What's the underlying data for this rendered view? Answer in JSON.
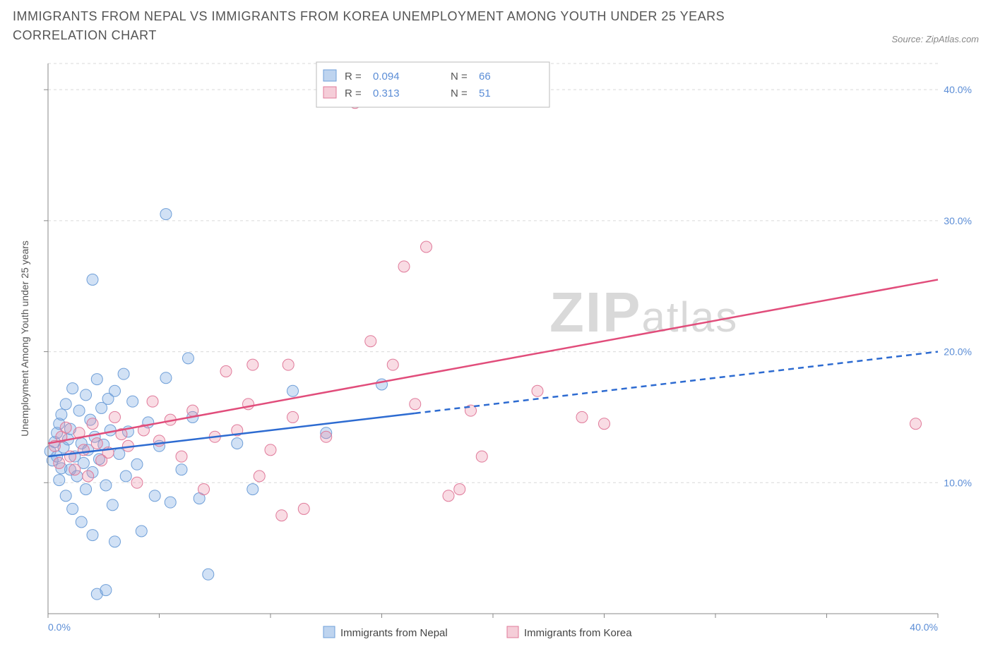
{
  "title": "IMMIGRANTS FROM NEPAL VS IMMIGRANTS FROM KOREA UNEMPLOYMENT AMONG YOUTH UNDER 25 YEARS CORRELATION CHART",
  "source_label": "Source: ZipAtlas.com",
  "watermark": {
    "zip": "ZIP",
    "atlas": "atlas"
  },
  "y_axis_label": "Unemployment Among Youth under 25 years",
  "chart": {
    "type": "scatter",
    "background_color": "#ffffff",
    "grid_color": "#d9d9d9",
    "axis_line_color": "#888888",
    "tick_label_color": "#5b8dd6",
    "xlim": [
      0,
      40
    ],
    "ylim": [
      0,
      42
    ],
    "x_ticks": [
      0,
      5,
      10,
      15,
      20,
      25,
      30,
      35,
      40
    ],
    "x_tick_labels": [
      "0.0%",
      "",
      "",
      "",
      "",
      "",
      "",
      "",
      "40.0%"
    ],
    "y_ticks": [
      10,
      20,
      30,
      40
    ],
    "y_tick_labels": [
      "10.0%",
      "20.0%",
      "30.0%",
      "40.0%"
    ],
    "y_grid_at": [
      10,
      20,
      30,
      40,
      42
    ],
    "marker_radius": 8,
    "marker_stroke_width": 1,
    "trend_line_width": 2.5,
    "series": [
      {
        "name": "Immigrants from Nepal",
        "r": "0.094",
        "n": "66",
        "color_fill": "rgba(123,168,226,0.35)",
        "color_stroke": "#6f9fd8",
        "swatch_fill": "#bed4ef",
        "swatch_stroke": "#6f9fd8",
        "trend_color": "#2d6bd1",
        "trend": {
          "x1": 0,
          "y1": 12.0,
          "x2": 40,
          "y2": 20.0,
          "solid_until_x": 16.5
        },
        "points": [
          [
            0.1,
            12.4
          ],
          [
            0.2,
            11.7
          ],
          [
            0.3,
            13.1
          ],
          [
            0.4,
            12.0
          ],
          [
            0.4,
            13.8
          ],
          [
            0.5,
            10.2
          ],
          [
            0.5,
            14.5
          ],
          [
            0.6,
            11.1
          ],
          [
            0.6,
            15.2
          ],
          [
            0.7,
            12.7
          ],
          [
            0.8,
            9.0
          ],
          [
            0.8,
            16.0
          ],
          [
            0.9,
            13.3
          ],
          [
            1.0,
            11.0
          ],
          [
            1.0,
            14.1
          ],
          [
            1.1,
            8.0
          ],
          [
            1.1,
            17.2
          ],
          [
            1.2,
            12.0
          ],
          [
            1.3,
            10.5
          ],
          [
            1.4,
            15.5
          ],
          [
            1.5,
            13.0
          ],
          [
            1.5,
            7.0
          ],
          [
            1.6,
            11.5
          ],
          [
            1.7,
            9.5
          ],
          [
            1.7,
            16.7
          ],
          [
            1.8,
            12.5
          ],
          [
            1.9,
            14.8
          ],
          [
            2.0,
            10.8
          ],
          [
            2.0,
            6.0
          ],
          [
            2.1,
            13.5
          ],
          [
            2.2,
            17.9
          ],
          [
            2.3,
            11.8
          ],
          [
            2.4,
            15.7
          ],
          [
            2.5,
            12.9
          ],
          [
            2.6,
            9.8
          ],
          [
            2.7,
            16.4
          ],
          [
            2.8,
            14.0
          ],
          [
            2.9,
            8.3
          ],
          [
            3.0,
            17.0
          ],
          [
            3.0,
            5.5
          ],
          [
            3.2,
            12.2
          ],
          [
            3.4,
            18.3
          ],
          [
            3.5,
            10.5
          ],
          [
            3.6,
            13.9
          ],
          [
            3.8,
            16.2
          ],
          [
            4.0,
            11.4
          ],
          [
            4.2,
            6.3
          ],
          [
            4.5,
            14.6
          ],
          [
            4.8,
            9.0
          ],
          [
            5.0,
            12.8
          ],
          [
            5.3,
            18.0
          ],
          [
            2.0,
            25.5
          ],
          [
            2.2,
            1.5
          ],
          [
            2.6,
            1.8
          ],
          [
            5.5,
            8.5
          ],
          [
            6.0,
            11.0
          ],
          [
            6.3,
            19.5
          ],
          [
            6.5,
            15.0
          ],
          [
            6.8,
            8.8
          ],
          [
            7.2,
            3.0
          ],
          [
            5.3,
            30.5
          ],
          [
            8.5,
            13.0
          ],
          [
            9.2,
            9.5
          ],
          [
            11.0,
            17.0
          ],
          [
            12.5,
            13.8
          ],
          [
            15.0,
            17.5
          ]
        ]
      },
      {
        "name": "Immigrants from Korea",
        "r": "0.313",
        "n": "51",
        "color_fill": "rgba(235,140,165,0.30)",
        "color_stroke": "#e07a9a",
        "swatch_fill": "#f5cdd8",
        "swatch_stroke": "#e07a9a",
        "trend_color": "#e14d7b",
        "trend": {
          "x1": 0,
          "y1": 13.0,
          "x2": 40,
          "y2": 25.5,
          "solid_until_x": 40
        },
        "points": [
          [
            0.3,
            12.8
          ],
          [
            0.5,
            11.5
          ],
          [
            0.6,
            13.5
          ],
          [
            0.8,
            14.2
          ],
          [
            1.0,
            12.0
          ],
          [
            1.2,
            11.0
          ],
          [
            1.4,
            13.8
          ],
          [
            1.6,
            12.5
          ],
          [
            1.8,
            10.5
          ],
          [
            2.0,
            14.5
          ],
          [
            2.2,
            13.0
          ],
          [
            2.4,
            11.7
          ],
          [
            2.7,
            12.3
          ],
          [
            3.0,
            15.0
          ],
          [
            3.3,
            13.7
          ],
          [
            3.6,
            12.8
          ],
          [
            4.0,
            10.0
          ],
          [
            4.3,
            14.0
          ],
          [
            4.7,
            16.2
          ],
          [
            5.0,
            13.2
          ],
          [
            5.5,
            14.8
          ],
          [
            6.0,
            12.0
          ],
          [
            6.5,
            15.5
          ],
          [
            7.0,
            9.5
          ],
          [
            7.5,
            13.5
          ],
          [
            8.0,
            18.5
          ],
          [
            8.5,
            14.0
          ],
          [
            9.0,
            16.0
          ],
          [
            9.2,
            19.0
          ],
          [
            9.5,
            10.5
          ],
          [
            10.0,
            12.5
          ],
          [
            10.5,
            7.5
          ],
          [
            11.0,
            15.0
          ],
          [
            11.5,
            8.0
          ],
          [
            10.8,
            19.0
          ],
          [
            12.5,
            13.5
          ],
          [
            13.5,
            40.5
          ],
          [
            13.8,
            39.0
          ],
          [
            14.5,
            20.8
          ],
          [
            15.5,
            19.0
          ],
          [
            16.0,
            26.5
          ],
          [
            16.5,
            16.0
          ],
          [
            17.0,
            28.0
          ],
          [
            18.0,
            9.0
          ],
          [
            18.5,
            9.5
          ],
          [
            19.0,
            15.5
          ],
          [
            19.5,
            12.0
          ],
          [
            22.0,
            17.0
          ],
          [
            24.0,
            15.0
          ],
          [
            25.0,
            14.5
          ],
          [
            39.0,
            14.5
          ]
        ]
      }
    ],
    "correlation_box": {
      "border_color": "#bbbbbb",
      "bg_color": "#ffffff",
      "r_label": "R =",
      "n_label": "N ="
    },
    "bottom_legend_swatch_size": 16
  }
}
